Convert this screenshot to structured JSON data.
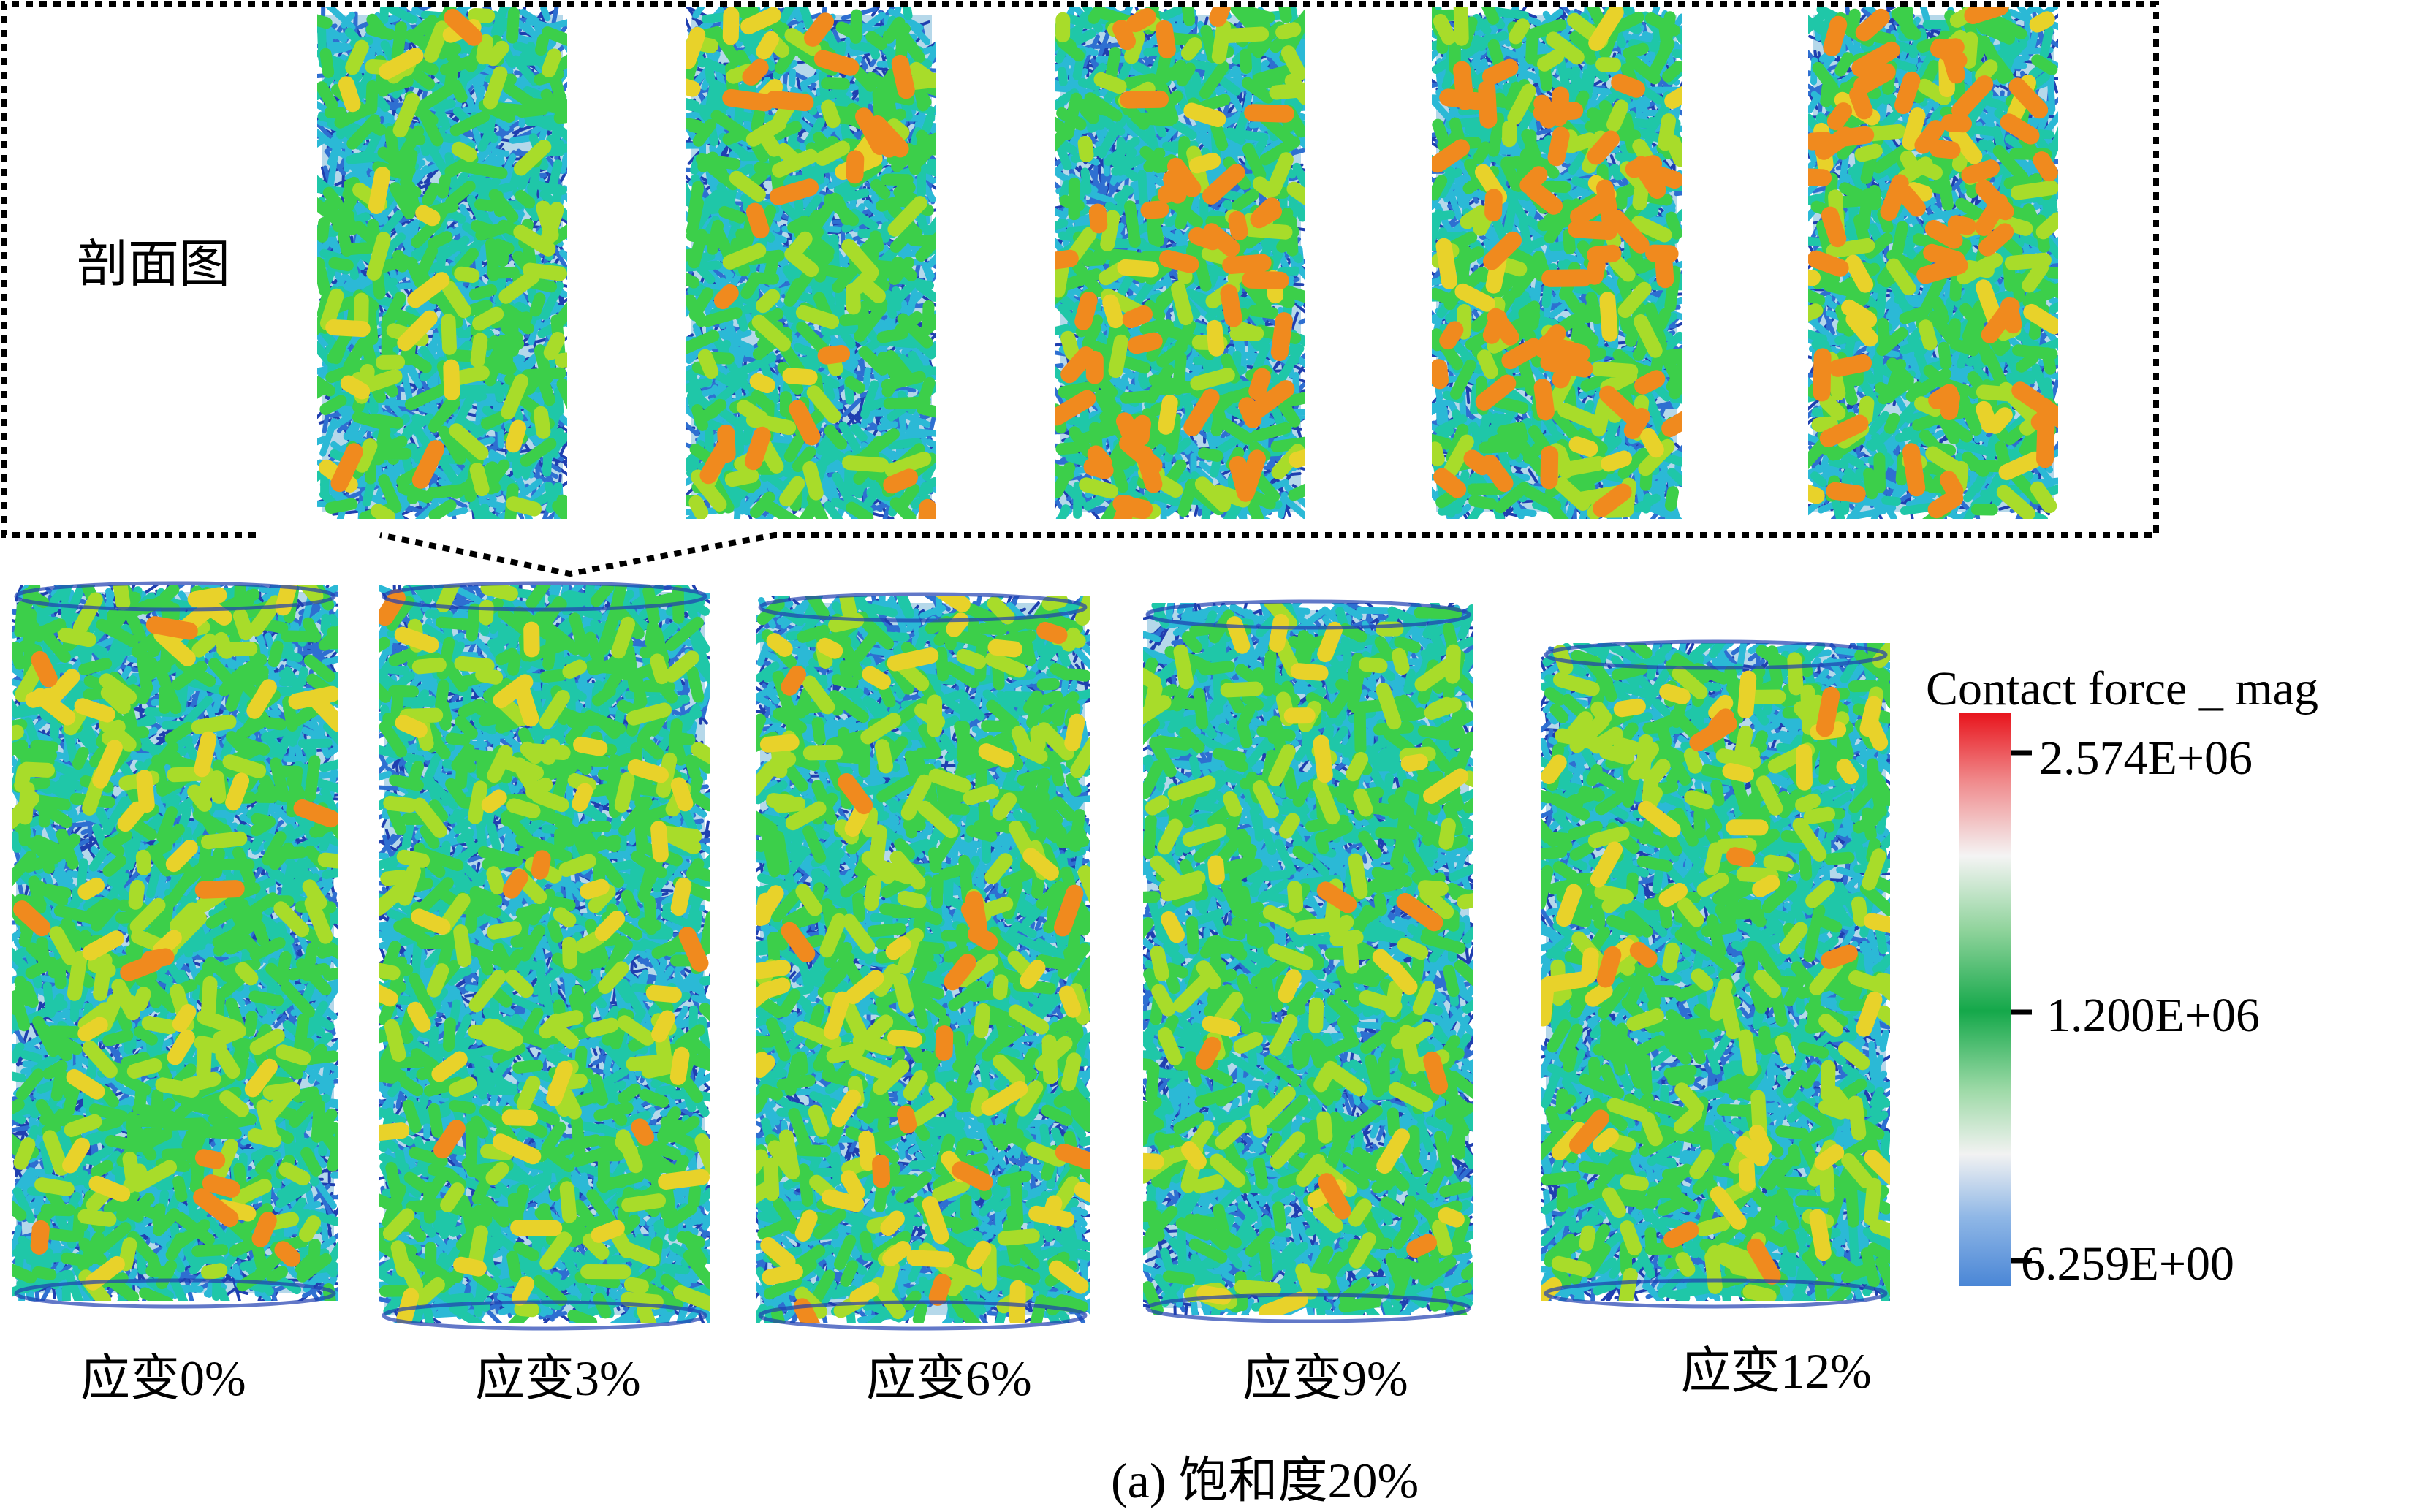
{
  "section_label": "剖面图",
  "columns": [
    {
      "strain_label": "应变0%"
    },
    {
      "strain_label": "应变3%"
    },
    {
      "strain_label": "应变6%"
    },
    {
      "strain_label": "应变9%"
    },
    {
      "strain_label": "应变12%"
    }
  ],
  "caption": "(a) 饱和度20%",
  "legend": {
    "title": "Contact force _ mag",
    "ticks": [
      "2.574E+06",
      "1.200E+06",
      "6.259E+00"
    ],
    "max_value": 2574000,
    "mid_value": 1200000,
    "min_value": 6.259,
    "colors": [
      "#e8141c",
      "#f08a8c",
      "#f4f4f4",
      "#8fd39b",
      "#14a84a",
      "#9fdaa8",
      "#f2f2f2",
      "#8fb7e6",
      "#4a86d6"
    ]
  },
  "network_colors": {
    "deep_blue": "#1f3fb0",
    "blue": "#2e6fd1",
    "cyan": "#2bb9d6",
    "teal": "#1fc7a8",
    "green": "#3ccf4a",
    "yellow_green": "#a8dc2a",
    "yellow": "#e8d22a",
    "orange": "#f08a1e",
    "red": "#e0401a"
  }
}
